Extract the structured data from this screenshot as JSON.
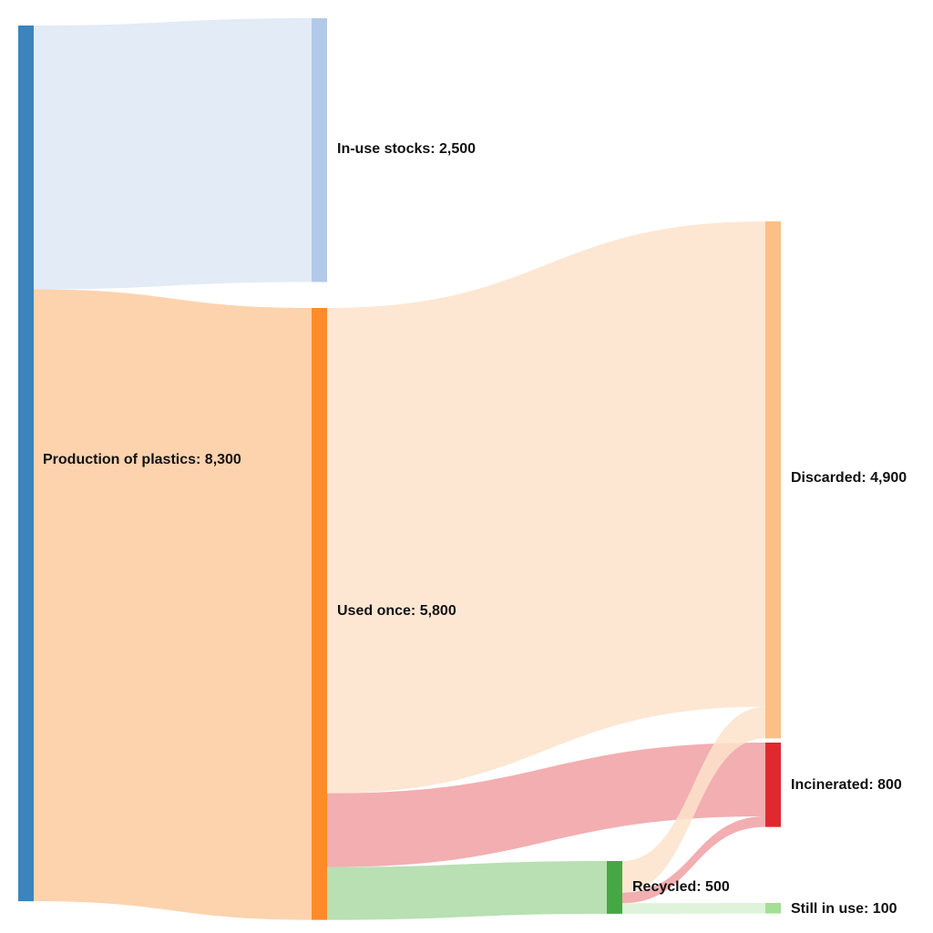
{
  "chart_data": {
    "type": "sankey",
    "title": "",
    "units": "",
    "nodes": [
      {
        "id": "production",
        "label": "Production of plastics",
        "value": 8300,
        "value_label": "8,300",
        "color": "#3b84be"
      },
      {
        "id": "stocks",
        "label": "In-use stocks",
        "value": 2500,
        "value_label": "2,500",
        "color": "#b3c9ea"
      },
      {
        "id": "used",
        "label": "Used once",
        "value": 5800,
        "value_label": "5,800",
        "color": "#fd8c28"
      },
      {
        "id": "discarded",
        "label": "Discarded",
        "value": 4900,
        "value_label": "4,900",
        "color": "#fdbf85"
      },
      {
        "id": "incinerated",
        "label": "Incinerated",
        "value": 800,
        "value_label": "800",
        "color": "#e0292e"
      },
      {
        "id": "recycled",
        "label": "Recycled",
        "value": 500,
        "value_label": "500",
        "color": "#45a845"
      },
      {
        "id": "stillinuse",
        "label": "Still in use",
        "value": 100,
        "value_label": "100",
        "color": "#a3df94"
      }
    ],
    "links": [
      {
        "source": "production",
        "target": "stocks",
        "value": 2500,
        "color": "#dde7f4"
      },
      {
        "source": "production",
        "target": "used",
        "value": 5800,
        "color": "#fdcba0"
      },
      {
        "source": "used",
        "target": "discarded",
        "value": 4600,
        "color": "#fde3cb"
      },
      {
        "source": "used",
        "target": "incinerated",
        "value": 700,
        "color": "#f0a0a3"
      },
      {
        "source": "used",
        "target": "recycled",
        "value": 500,
        "color": "#abdba6"
      },
      {
        "source": "recycled",
        "target": "discarded",
        "value": 300,
        "color": "#fde3cb"
      },
      {
        "source": "recycled",
        "target": "incinerated",
        "value": 100,
        "color": "#f0a0a3"
      },
      {
        "source": "recycled",
        "target": "stillinuse",
        "value": 100,
        "color": "#d9f1d3"
      }
    ],
    "separator": ": "
  }
}
